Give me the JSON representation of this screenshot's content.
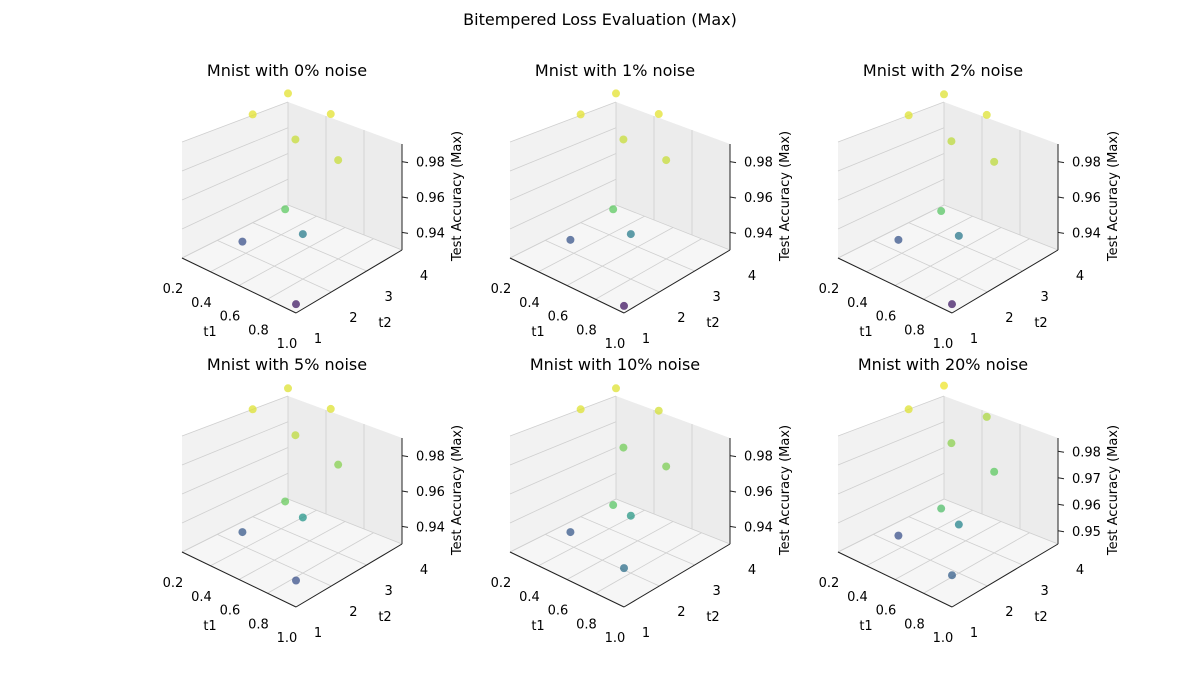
{
  "figure": {
    "title": "Bitempered Loss Evaluation (Max)"
  },
  "chart_data": [
    {
      "type": "scatter",
      "title": "Mnist with 0% noise",
      "xlabel": "t1",
      "ylabel": "t2",
      "zlabel": "Test Accuracy (Max)",
      "xlim": [
        0.2,
        1.0
      ],
      "ylim": [
        1,
        4
      ],
      "zlim": [
        0.93,
        0.99
      ],
      "xticks": [
        "0.2",
        "0.4",
        "0.6",
        "0.8",
        "1.0"
      ],
      "yticks": [
        "1",
        "2",
        "3",
        "4"
      ],
      "zticks": [
        "0.94",
        "0.96",
        "0.98"
      ],
      "zticks_values": [
        0.94,
        0.96,
        0.98
      ],
      "points": [
        {
          "x": 0.2,
          "y": 3.0,
          "z": 0.9875
        },
        {
          "x": 0.2,
          "y": 4.0,
          "z": 0.9875
        },
        {
          "x": 0.5,
          "y": 3.0,
          "z": 0.985
        },
        {
          "x": 0.5,
          "y": 4.0,
          "z": 0.9875
        },
        {
          "x": 0.5,
          "y": 1.5,
          "z": 0.945
        },
        {
          "x": 0.8,
          "y": 1.5,
          "z": 0.975
        },
        {
          "x": 0.8,
          "y": 3.0,
          "z": 0.985
        },
        {
          "x": 0.8,
          "y": 2.0,
          "z": 0.955
        },
        {
          "x": 1.0,
          "y": 1.0,
          "z": 0.935
        }
      ]
    },
    {
      "type": "scatter",
      "title": "Mnist with 1% noise",
      "xlabel": "t1",
      "ylabel": "t2",
      "zlabel": "Test Accuracy (Max)",
      "xlim": [
        0.2,
        1.0
      ],
      "ylim": [
        1,
        4
      ],
      "zlim": [
        0.93,
        0.99
      ],
      "xticks": [
        "0.2",
        "0.4",
        "0.6",
        "0.8",
        "1.0"
      ],
      "yticks": [
        "1",
        "2",
        "3",
        "4"
      ],
      "zticks": [
        "0.94",
        "0.96",
        "0.98"
      ],
      "zticks_values": [
        0.94,
        0.96,
        0.98
      ],
      "points": [
        {
          "x": 0.2,
          "y": 3.0,
          "z": 0.9875
        },
        {
          "x": 0.2,
          "y": 4.0,
          "z": 0.9875
        },
        {
          "x": 0.5,
          "y": 3.0,
          "z": 0.985
        },
        {
          "x": 0.5,
          "y": 4.0,
          "z": 0.9875
        },
        {
          "x": 0.5,
          "y": 1.5,
          "z": 0.946
        },
        {
          "x": 0.8,
          "y": 1.5,
          "z": 0.975
        },
        {
          "x": 0.8,
          "y": 3.0,
          "z": 0.985
        },
        {
          "x": 0.8,
          "y": 2.0,
          "z": 0.955
        },
        {
          "x": 1.0,
          "y": 1.0,
          "z": 0.934
        }
      ]
    },
    {
      "type": "scatter",
      "title": "Mnist with 2% noise",
      "xlabel": "t1",
      "ylabel": "t2",
      "zlabel": "Test Accuracy (Max)",
      "xlim": [
        0.2,
        1.0
      ],
      "ylim": [
        1,
        4
      ],
      "zlim": [
        0.93,
        0.99
      ],
      "xticks": [
        "0.2",
        "0.4",
        "0.6",
        "0.8",
        "1.0"
      ],
      "yticks": [
        "1",
        "2",
        "3",
        "4"
      ],
      "zticks": [
        "0.94",
        "0.96",
        "0.98"
      ],
      "zticks_values": [
        0.94,
        0.96,
        0.98
      ],
      "points": [
        {
          "x": 0.2,
          "y": 3.0,
          "z": 0.987
        },
        {
          "x": 0.2,
          "y": 4.0,
          "z": 0.987
        },
        {
          "x": 0.5,
          "y": 3.0,
          "z": 0.984
        },
        {
          "x": 0.5,
          "y": 4.0,
          "z": 0.987
        },
        {
          "x": 0.5,
          "y": 1.5,
          "z": 0.946
        },
        {
          "x": 0.8,
          "y": 1.5,
          "z": 0.974
        },
        {
          "x": 0.8,
          "y": 3.0,
          "z": 0.984
        },
        {
          "x": 0.8,
          "y": 2.0,
          "z": 0.954
        },
        {
          "x": 1.0,
          "y": 1.0,
          "z": 0.935
        }
      ]
    },
    {
      "type": "scatter",
      "title": "Mnist with 5% noise",
      "xlabel": "t1",
      "ylabel": "t2",
      "zlabel": "Test Accuracy (Max)",
      "xlim": [
        0.2,
        1.0
      ],
      "ylim": [
        1,
        4
      ],
      "zlim": [
        0.93,
        0.99
      ],
      "xticks": [
        "0.2",
        "0.4",
        "0.6",
        "0.8",
        "1.0"
      ],
      "yticks": [
        "1",
        "2",
        "3",
        "4"
      ],
      "zticks": [
        "0.94",
        "0.96",
        "0.98"
      ],
      "zticks_values": [
        0.94,
        0.96,
        0.98
      ],
      "points": [
        {
          "x": 0.2,
          "y": 3.0,
          "z": 0.987
        },
        {
          "x": 0.2,
          "y": 4.0,
          "z": 0.987
        },
        {
          "x": 0.5,
          "y": 3.0,
          "z": 0.984
        },
        {
          "x": 0.5,
          "y": 4.0,
          "z": 0.987
        },
        {
          "x": 0.5,
          "y": 1.5,
          "z": 0.947
        },
        {
          "x": 0.8,
          "y": 1.5,
          "z": 0.976
        },
        {
          "x": 0.8,
          "y": 3.0,
          "z": 0.979
        },
        {
          "x": 0.8,
          "y": 2.0,
          "z": 0.961
        },
        {
          "x": 1.0,
          "y": 1.0,
          "z": 0.945
        }
      ]
    },
    {
      "type": "scatter",
      "title": "Mnist with 10% noise",
      "xlabel": "t1",
      "ylabel": "t2",
      "zlabel": "Test Accuracy (Max)",
      "xlim": [
        0.2,
        1.0
      ],
      "ylim": [
        1,
        4
      ],
      "zlim": [
        0.93,
        0.99
      ],
      "xticks": [
        "0.2",
        "0.4",
        "0.6",
        "0.8",
        "1.0"
      ],
      "yticks": [
        "1",
        "2",
        "3",
        "4"
      ],
      "zticks": [
        "0.94",
        "0.96",
        "0.98"
      ],
      "zticks_values": [
        0.94,
        0.96,
        0.98
      ],
      "points": [
        {
          "x": 0.2,
          "y": 3.0,
          "z": 0.987
        },
        {
          "x": 0.2,
          "y": 4.0,
          "z": 0.987
        },
        {
          "x": 0.5,
          "y": 3.0,
          "z": 0.977
        },
        {
          "x": 0.5,
          "y": 4.0,
          "z": 0.986
        },
        {
          "x": 0.5,
          "y": 1.5,
          "z": 0.947
        },
        {
          "x": 0.8,
          "y": 1.5,
          "z": 0.974
        },
        {
          "x": 0.8,
          "y": 3.0,
          "z": 0.978
        },
        {
          "x": 0.8,
          "y": 2.0,
          "z": 0.962
        },
        {
          "x": 1.0,
          "y": 1.0,
          "z": 0.952
        }
      ]
    },
    {
      "type": "scatter",
      "title": "Mnist with 20% noise",
      "xlabel": "t1",
      "ylabel": "t2",
      "zlabel": "Test Accuracy (Max)",
      "xlim": [
        0.2,
        1.0
      ],
      "ylim": [
        1,
        4
      ],
      "zlim": [
        0.945,
        0.985
      ],
      "xticks": [
        "0.2",
        "0.4",
        "0.6",
        "0.8",
        "1.0"
      ],
      "yticks": [
        "1",
        "2",
        "3",
        "4"
      ],
      "zticks": [
        "0.95",
        "0.96",
        "0.97",
        "0.98"
      ],
      "zticks_values": [
        0.95,
        0.96,
        0.97,
        0.98
      ],
      "points": [
        {
          "x": 0.2,
          "y": 3.0,
          "z": 0.983
        },
        {
          "x": 0.2,
          "y": 4.0,
          "z": 0.984
        },
        {
          "x": 0.5,
          "y": 3.0,
          "z": 0.978
        },
        {
          "x": 0.5,
          "y": 4.0,
          "z": 0.98
        },
        {
          "x": 0.5,
          "y": 1.5,
          "z": 0.955
        },
        {
          "x": 0.8,
          "y": 1.5,
          "z": 0.973
        },
        {
          "x": 0.8,
          "y": 3.0,
          "z": 0.975
        },
        {
          "x": 0.8,
          "y": 2.0,
          "z": 0.963
        },
        {
          "x": 1.0,
          "y": 1.0,
          "z": 0.957
        }
      ]
    }
  ]
}
